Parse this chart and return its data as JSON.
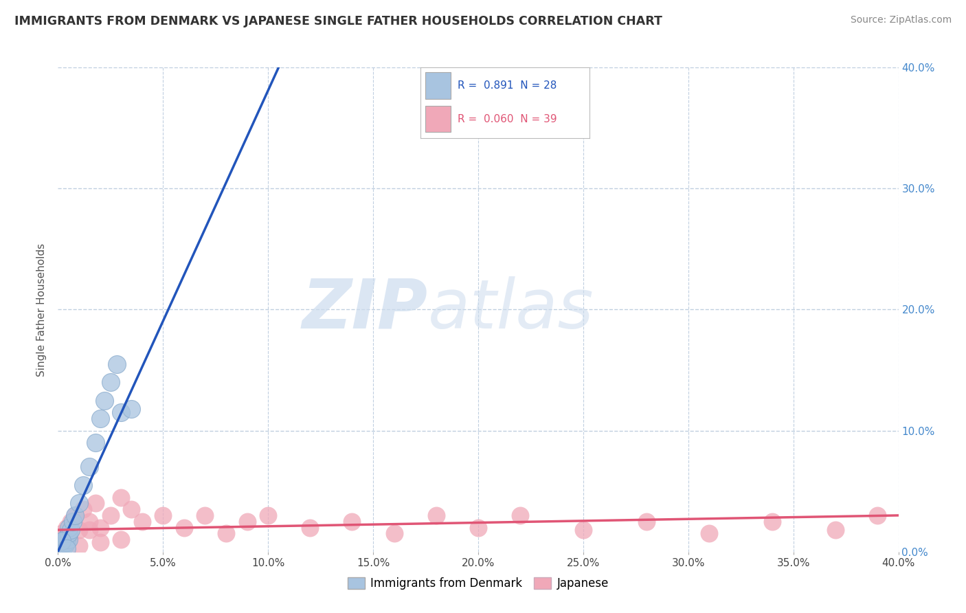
{
  "title": "IMMIGRANTS FROM DENMARK VS JAPANESE SINGLE FATHER HOUSEHOLDS CORRELATION CHART",
  "source": "Source: ZipAtlas.com",
  "ylabel": "Single Father Households",
  "xlim": [
    0,
    0.4
  ],
  "ylim": [
    0,
    0.4
  ],
  "xticks": [
    0.0,
    0.05,
    0.1,
    0.15,
    0.2,
    0.25,
    0.3,
    0.35,
    0.4
  ],
  "yticks": [
    0.0,
    0.1,
    0.2,
    0.3,
    0.4
  ],
  "blue_R": 0.891,
  "blue_N": 28,
  "pink_R": 0.06,
  "pink_N": 39,
  "blue_color": "#a8c4e0",
  "pink_color": "#f0a8b8",
  "blue_line_color": "#2255bb",
  "pink_line_color": "#e05575",
  "background_color": "#ffffff",
  "grid_color": "#c0cfe0",
  "watermark_zip": "ZIP",
  "watermark_atlas": "atlas",
  "blue_scatter_x": [
    0.001,
    0.001,
    0.002,
    0.002,
    0.002,
    0.003,
    0.003,
    0.003,
    0.004,
    0.004,
    0.005,
    0.005,
    0.005,
    0.006,
    0.007,
    0.008,
    0.01,
    0.012,
    0.015,
    0.018,
    0.02,
    0.022,
    0.025,
    0.028,
    0.03,
    0.035,
    0.002,
    0.004
  ],
  "blue_scatter_y": [
    0.003,
    0.005,
    0.004,
    0.006,
    0.008,
    0.005,
    0.007,
    0.01,
    0.008,
    0.012,
    0.01,
    0.015,
    0.02,
    0.018,
    0.025,
    0.03,
    0.04,
    0.055,
    0.07,
    0.09,
    0.11,
    0.125,
    0.14,
    0.155,
    0.115,
    0.118,
    0.009,
    0.003
  ],
  "pink_scatter_x": [
    0.001,
    0.002,
    0.003,
    0.004,
    0.005,
    0.006,
    0.008,
    0.01,
    0.012,
    0.015,
    0.018,
    0.02,
    0.025,
    0.03,
    0.035,
    0.04,
    0.05,
    0.06,
    0.07,
    0.08,
    0.09,
    0.1,
    0.12,
    0.14,
    0.16,
    0.18,
    0.2,
    0.22,
    0.25,
    0.28,
    0.31,
    0.34,
    0.37,
    0.39,
    0.01,
    0.02,
    0.005,
    0.015,
    0.03
  ],
  "pink_scatter_y": [
    0.01,
    0.015,
    0.008,
    0.02,
    0.012,
    0.025,
    0.03,
    0.018,
    0.035,
    0.025,
    0.04,
    0.02,
    0.03,
    0.045,
    0.035,
    0.025,
    0.03,
    0.02,
    0.03,
    0.015,
    0.025,
    0.03,
    0.02,
    0.025,
    0.015,
    0.03,
    0.02,
    0.03,
    0.018,
    0.025,
    0.015,
    0.025,
    0.018,
    0.03,
    0.005,
    0.008,
    0.012,
    0.018,
    0.01
  ],
  "blue_line_x": [
    0.0,
    0.105
  ],
  "blue_line_y": [
    0.0,
    0.4
  ],
  "pink_line_x": [
    0.0,
    0.4
  ],
  "pink_line_y": [
    0.018,
    0.03
  ]
}
